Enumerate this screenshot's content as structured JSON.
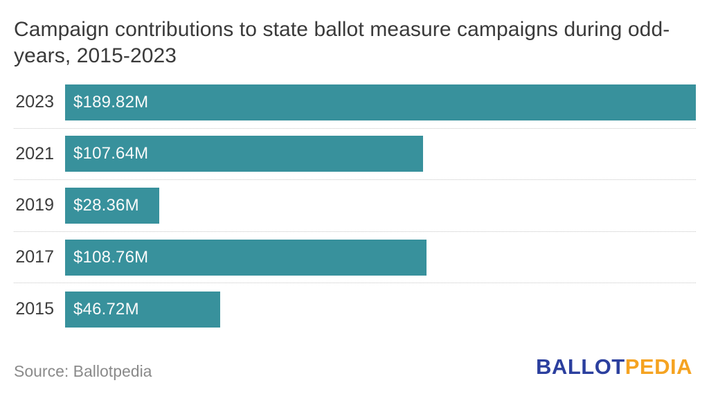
{
  "title": "Campaign contributions to state ballot measure campaigns during odd-years, 2015-2023",
  "chart_data": {
    "type": "bar",
    "orientation": "horizontal",
    "title": "Campaign contributions to state ballot measure campaigns during odd-years, 2015-2023",
    "xlabel": "",
    "ylabel": "",
    "categories": [
      "2023",
      "2021",
      "2019",
      "2017",
      "2015"
    ],
    "values": [
      189.82,
      107.64,
      28.36,
      108.76,
      46.72
    ],
    "value_labels": [
      "$189.82M",
      "$107.64M",
      "$28.36M",
      "$108.76M",
      "$46.72M"
    ],
    "xlim": [
      0,
      189.82
    ],
    "bar_color": "#38919c",
    "bar_label_color": "#fafafa",
    "grid": "dotted horizontal separators between rows",
    "legend": "none"
  },
  "footer": {
    "source": "Source: Ballotpedia",
    "logo": {
      "part1": "BALLOT",
      "part2": "PEDIA",
      "part1_color": "#2b3f9e",
      "part2_color": "#f5a321"
    }
  }
}
